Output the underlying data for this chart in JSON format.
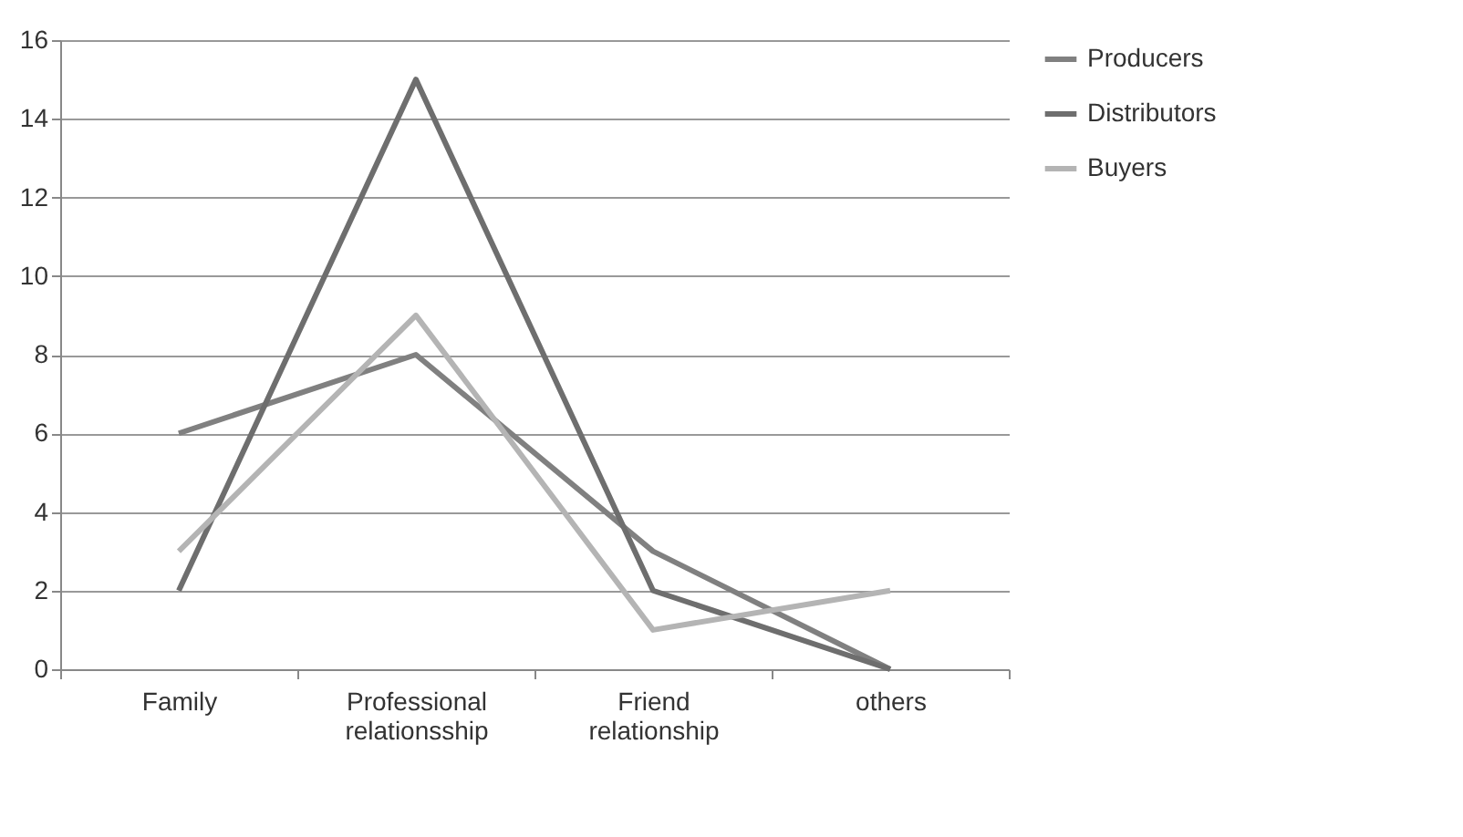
{
  "chart_data": {
    "type": "line",
    "categories": [
      "Family",
      "Professional relationsship",
      "Friend relationship",
      "others"
    ],
    "series": [
      {
        "name": "Producers",
        "color": "#808080",
        "values": [
          6,
          8,
          3,
          0
        ]
      },
      {
        "name": "Distributors",
        "color": "#6e6e6e",
        "values": [
          2,
          15,
          2,
          0
        ]
      },
      {
        "name": "Buyers",
        "color": "#b4b4b4",
        "values": [
          3,
          9,
          1,
          2
        ]
      }
    ],
    "ylim": [
      0,
      16
    ],
    "yticks": [
      0,
      2,
      4,
      6,
      8,
      10,
      12,
      14,
      16
    ],
    "grid": "y",
    "legend": "right",
    "marker": "none",
    "line_style": "solid"
  }
}
